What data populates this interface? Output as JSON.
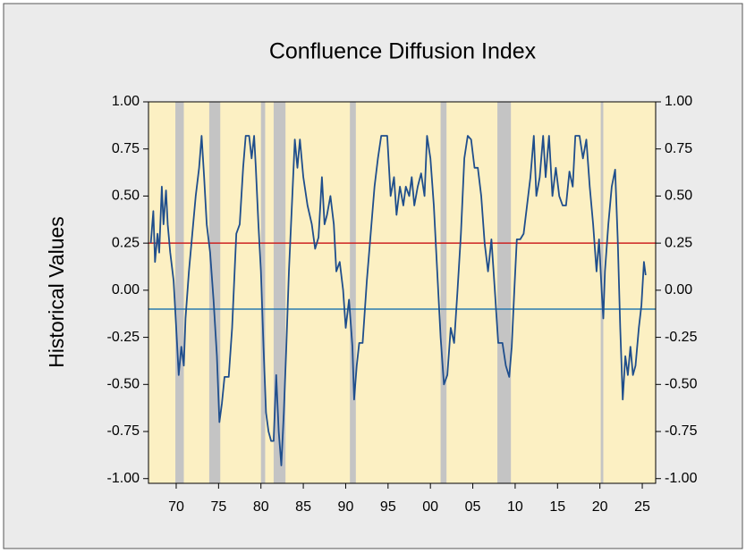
{
  "chart_data": {
    "type": "line",
    "title": "Confluence Diffusion Index",
    "y_label": "Historical Values",
    "xlim": [
      1966.73,
      2026.58
    ],
    "ylim": [
      -1.025,
      1.0
    ],
    "xticks": [
      {
        "value": 1970,
        "label": "70"
      },
      {
        "value": 1975,
        "label": "75"
      },
      {
        "value": 1980,
        "label": "80"
      },
      {
        "value": 1985,
        "label": "85"
      },
      {
        "value": 1990,
        "label": "90"
      },
      {
        "value": 1995,
        "label": "95"
      },
      {
        "value": 2000,
        "label": "00"
      },
      {
        "value": 2005,
        "label": "05"
      },
      {
        "value": 2010,
        "label": "10"
      },
      {
        "value": 2015,
        "label": "15"
      },
      {
        "value": 2020,
        "label": "20"
      },
      {
        "value": 2025,
        "label": "25"
      }
    ],
    "yticks": [
      {
        "value": 1.0,
        "label": "1.00"
      },
      {
        "value": 0.75,
        "label": "0.75"
      },
      {
        "value": 0.5,
        "label": "0.50"
      },
      {
        "value": 0.25,
        "label": "0.25"
      },
      {
        "value": 0.0,
        "label": "0.00"
      },
      {
        "value": -0.25,
        "label": "-0.25"
      },
      {
        "value": -0.5,
        "label": "-0.50"
      },
      {
        "value": -0.75,
        "label": "-0.75"
      },
      {
        "value": -1.0,
        "label": "-1.00"
      }
    ],
    "recessions": [
      [
        1969.9,
        1970.9
      ],
      [
        1973.9,
        1975.2
      ],
      [
        1980.0,
        1980.5
      ],
      [
        1981.5,
        1982.9
      ],
      [
        1990.5,
        1991.2
      ],
      [
        2001.2,
        2001.9
      ],
      [
        2007.9,
        2009.5
      ],
      [
        2020.1,
        2020.4
      ]
    ],
    "recession_color": "#c4c4c4",
    "reference_lines": [
      {
        "value": 0.25,
        "color": "#cc2222"
      },
      {
        "value": -0.1,
        "color": "#2a7ab0"
      }
    ],
    "plot_background": "#fcf0c3",
    "series": [
      {
        "color": "#1f4e8c",
        "x": [
          1967.0,
          1967.3,
          1967.5,
          1967.8,
          1968.0,
          1968.3,
          1968.5,
          1968.8,
          1969.0,
          1969.3,
          1969.7,
          1970.0,
          1970.3,
          1970.6,
          1970.9,
          1971.1,
          1971.5,
          1971.9,
          1972.3,
          1972.7,
          1973.0,
          1973.3,
          1973.6,
          1974.0,
          1974.4,
          1974.8,
          1975.1,
          1975.4,
          1975.7,
          1976.2,
          1976.6,
          1976.9,
          1977.1,
          1977.5,
          1977.9,
          1978.2,
          1978.6,
          1978.9,
          1979.2,
          1979.4,
          1979.7,
          1980.0,
          1980.3,
          1980.6,
          1980.9,
          1981.2,
          1981.5,
          1981.8,
          1982.1,
          1982.4,
          1982.7,
          1983.0,
          1983.3,
          1983.7,
          1984.0,
          1984.3,
          1984.6,
          1985.0,
          1985.5,
          1986.0,
          1986.4,
          1986.8,
          1987.2,
          1987.5,
          1987.8,
          1988.2,
          1988.6,
          1988.9,
          1989.3,
          1989.7,
          1990.0,
          1990.4,
          1990.8,
          1991.0,
          1991.3,
          1991.6,
          1992.0,
          1992.5,
          1992.9,
          1993.4,
          1993.8,
          1994.2,
          1994.9,
          1995.3,
          1995.7,
          1996.0,
          1996.4,
          1996.8,
          1997.1,
          1997.5,
          1997.8,
          1998.1,
          1998.5,
          1998.9,
          1999.3,
          1999.6,
          2000.0,
          2000.4,
          2000.8,
          2001.2,
          2001.6,
          2002.0,
          2002.4,
          2002.8,
          2003.2,
          2003.6,
          2004.0,
          2004.4,
          2004.8,
          2005.2,
          2005.6,
          2006.0,
          2006.4,
          2006.8,
          2007.2,
          2007.6,
          2008.0,
          2008.5,
          2008.9,
          2009.3,
          2009.6,
          2009.9,
          2010.2,
          2010.6,
          2011.0,
          2011.4,
          2011.8,
          2012.2,
          2012.5,
          2012.9,
          2013.3,
          2013.6,
          2014.0,
          2014.4,
          2014.8,
          2015.2,
          2015.6,
          2016.0,
          2016.4,
          2016.8,
          2017.1,
          2017.6,
          2018.0,
          2018.4,
          2018.8,
          2019.2,
          2019.6,
          2019.9,
          2020.2,
          2020.4,
          2020.6,
          2021.0,
          2021.4,
          2021.8,
          2022.1,
          2022.4,
          2022.7,
          2023.0,
          2023.3,
          2023.6,
          2023.9,
          2024.2,
          2024.6,
          2024.9,
          2025.2,
          2025.4
        ],
        "values": [
          0.25,
          0.42,
          0.15,
          0.3,
          0.2,
          0.55,
          0.35,
          0.53,
          0.35,
          0.2,
          0.05,
          -0.2,
          -0.45,
          -0.3,
          -0.4,
          -0.15,
          0.1,
          0.3,
          0.5,
          0.65,
          0.82,
          0.6,
          0.35,
          0.2,
          -0.05,
          -0.35,
          -0.7,
          -0.6,
          -0.46,
          -0.46,
          -0.2,
          0.1,
          0.3,
          0.35,
          0.65,
          0.82,
          0.82,
          0.7,
          0.82,
          0.65,
          0.35,
          0.1,
          -0.3,
          -0.65,
          -0.75,
          -0.8,
          -0.8,
          -0.45,
          -0.75,
          -0.93,
          -0.65,
          -0.3,
          0.1,
          0.5,
          0.8,
          0.65,
          0.8,
          0.6,
          0.45,
          0.35,
          0.22,
          0.28,
          0.6,
          0.35,
          0.4,
          0.5,
          0.35,
          0.1,
          0.15,
          0.0,
          -0.2,
          -0.05,
          -0.3,
          -0.58,
          -0.4,
          -0.28,
          -0.28,
          0.05,
          0.27,
          0.55,
          0.7,
          0.82,
          0.82,
          0.5,
          0.6,
          0.4,
          0.55,
          0.45,
          0.55,
          0.5,
          0.6,
          0.45,
          0.55,
          0.62,
          0.5,
          0.82,
          0.7,
          0.45,
          0.1,
          -0.25,
          -0.5,
          -0.45,
          -0.2,
          -0.28,
          0.0,
          0.3,
          0.7,
          0.82,
          0.8,
          0.65,
          0.65,
          0.5,
          0.25,
          0.1,
          0.27,
          0.0,
          -0.28,
          -0.28,
          -0.4,
          -0.46,
          -0.3,
          0.0,
          0.27,
          0.27,
          0.3,
          0.45,
          0.6,
          0.82,
          0.5,
          0.6,
          0.82,
          0.6,
          0.82,
          0.5,
          0.65,
          0.5,
          0.45,
          0.45,
          0.63,
          0.55,
          0.82,
          0.82,
          0.7,
          0.8,
          0.55,
          0.35,
          0.1,
          0.27,
          0.0,
          -0.15,
          0.1,
          0.35,
          0.55,
          0.64,
          0.27,
          -0.2,
          -0.58,
          -0.35,
          -0.45,
          -0.3,
          -0.45,
          -0.4,
          -0.2,
          -0.08,
          0.15,
          0.08
        ]
      }
    ]
  }
}
